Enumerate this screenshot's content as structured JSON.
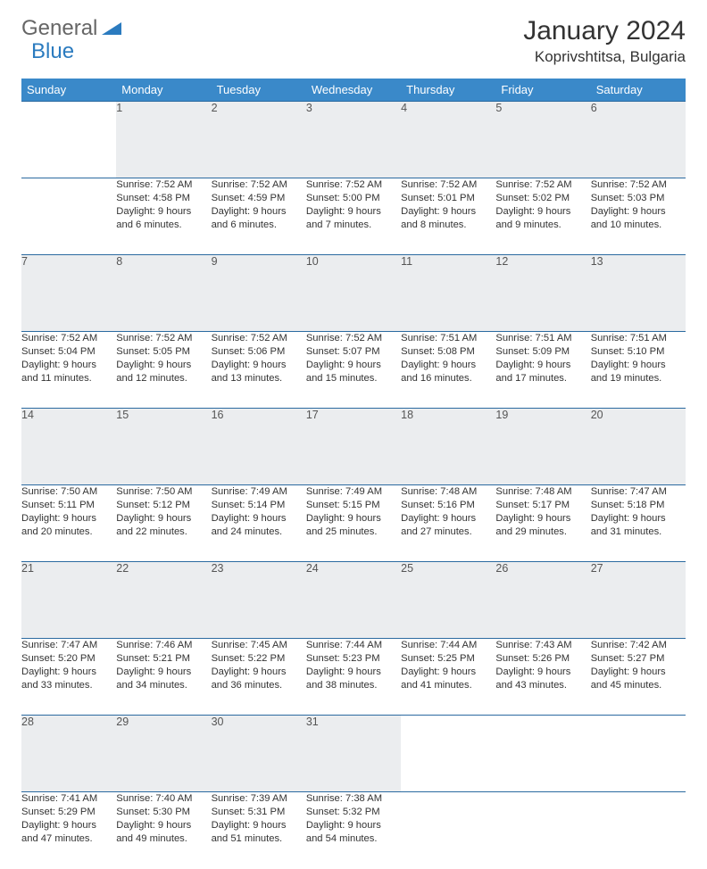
{
  "logo": {
    "general": "General",
    "blue": "Blue"
  },
  "title": "January 2024",
  "location": "Koprivshtitsa, Bulgaria",
  "colors": {
    "header_bg": "#3a89c9",
    "header_text": "#ffffff",
    "daynum_bg": "#ebedef",
    "border": "#2b6aa0",
    "logo_blue": "#2b7bbf"
  },
  "weekdays": [
    "Sunday",
    "Monday",
    "Tuesday",
    "Wednesday",
    "Thursday",
    "Friday",
    "Saturday"
  ],
  "weeks": [
    {
      "nums": [
        "",
        "1",
        "2",
        "3",
        "4",
        "5",
        "6"
      ],
      "cells": [
        null,
        {
          "sr": "Sunrise: 7:52 AM",
          "ss": "Sunset: 4:58 PM",
          "d1": "Daylight: 9 hours",
          "d2": "and 6 minutes."
        },
        {
          "sr": "Sunrise: 7:52 AM",
          "ss": "Sunset: 4:59 PM",
          "d1": "Daylight: 9 hours",
          "d2": "and 6 minutes."
        },
        {
          "sr": "Sunrise: 7:52 AM",
          "ss": "Sunset: 5:00 PM",
          "d1": "Daylight: 9 hours",
          "d2": "and 7 minutes."
        },
        {
          "sr": "Sunrise: 7:52 AM",
          "ss": "Sunset: 5:01 PM",
          "d1": "Daylight: 9 hours",
          "d2": "and 8 minutes."
        },
        {
          "sr": "Sunrise: 7:52 AM",
          "ss": "Sunset: 5:02 PM",
          "d1": "Daylight: 9 hours",
          "d2": "and 9 minutes."
        },
        {
          "sr": "Sunrise: 7:52 AM",
          "ss": "Sunset: 5:03 PM",
          "d1": "Daylight: 9 hours",
          "d2": "and 10 minutes."
        }
      ]
    },
    {
      "nums": [
        "7",
        "8",
        "9",
        "10",
        "11",
        "12",
        "13"
      ],
      "cells": [
        {
          "sr": "Sunrise: 7:52 AM",
          "ss": "Sunset: 5:04 PM",
          "d1": "Daylight: 9 hours",
          "d2": "and 11 minutes."
        },
        {
          "sr": "Sunrise: 7:52 AM",
          "ss": "Sunset: 5:05 PM",
          "d1": "Daylight: 9 hours",
          "d2": "and 12 minutes."
        },
        {
          "sr": "Sunrise: 7:52 AM",
          "ss": "Sunset: 5:06 PM",
          "d1": "Daylight: 9 hours",
          "d2": "and 13 minutes."
        },
        {
          "sr": "Sunrise: 7:52 AM",
          "ss": "Sunset: 5:07 PM",
          "d1": "Daylight: 9 hours",
          "d2": "and 15 minutes."
        },
        {
          "sr": "Sunrise: 7:51 AM",
          "ss": "Sunset: 5:08 PM",
          "d1": "Daylight: 9 hours",
          "d2": "and 16 minutes."
        },
        {
          "sr": "Sunrise: 7:51 AM",
          "ss": "Sunset: 5:09 PM",
          "d1": "Daylight: 9 hours",
          "d2": "and 17 minutes."
        },
        {
          "sr": "Sunrise: 7:51 AM",
          "ss": "Sunset: 5:10 PM",
          "d1": "Daylight: 9 hours",
          "d2": "and 19 minutes."
        }
      ]
    },
    {
      "nums": [
        "14",
        "15",
        "16",
        "17",
        "18",
        "19",
        "20"
      ],
      "cells": [
        {
          "sr": "Sunrise: 7:50 AM",
          "ss": "Sunset: 5:11 PM",
          "d1": "Daylight: 9 hours",
          "d2": "and 20 minutes."
        },
        {
          "sr": "Sunrise: 7:50 AM",
          "ss": "Sunset: 5:12 PM",
          "d1": "Daylight: 9 hours",
          "d2": "and 22 minutes."
        },
        {
          "sr": "Sunrise: 7:49 AM",
          "ss": "Sunset: 5:14 PM",
          "d1": "Daylight: 9 hours",
          "d2": "and 24 minutes."
        },
        {
          "sr": "Sunrise: 7:49 AM",
          "ss": "Sunset: 5:15 PM",
          "d1": "Daylight: 9 hours",
          "d2": "and 25 minutes."
        },
        {
          "sr": "Sunrise: 7:48 AM",
          "ss": "Sunset: 5:16 PM",
          "d1": "Daylight: 9 hours",
          "d2": "and 27 minutes."
        },
        {
          "sr": "Sunrise: 7:48 AM",
          "ss": "Sunset: 5:17 PM",
          "d1": "Daylight: 9 hours",
          "d2": "and 29 minutes."
        },
        {
          "sr": "Sunrise: 7:47 AM",
          "ss": "Sunset: 5:18 PM",
          "d1": "Daylight: 9 hours",
          "d2": "and 31 minutes."
        }
      ]
    },
    {
      "nums": [
        "21",
        "22",
        "23",
        "24",
        "25",
        "26",
        "27"
      ],
      "cells": [
        {
          "sr": "Sunrise: 7:47 AM",
          "ss": "Sunset: 5:20 PM",
          "d1": "Daylight: 9 hours",
          "d2": "and 33 minutes."
        },
        {
          "sr": "Sunrise: 7:46 AM",
          "ss": "Sunset: 5:21 PM",
          "d1": "Daylight: 9 hours",
          "d2": "and 34 minutes."
        },
        {
          "sr": "Sunrise: 7:45 AM",
          "ss": "Sunset: 5:22 PM",
          "d1": "Daylight: 9 hours",
          "d2": "and 36 minutes."
        },
        {
          "sr": "Sunrise: 7:44 AM",
          "ss": "Sunset: 5:23 PM",
          "d1": "Daylight: 9 hours",
          "d2": "and 38 minutes."
        },
        {
          "sr": "Sunrise: 7:44 AM",
          "ss": "Sunset: 5:25 PM",
          "d1": "Daylight: 9 hours",
          "d2": "and 41 minutes."
        },
        {
          "sr": "Sunrise: 7:43 AM",
          "ss": "Sunset: 5:26 PM",
          "d1": "Daylight: 9 hours",
          "d2": "and 43 minutes."
        },
        {
          "sr": "Sunrise: 7:42 AM",
          "ss": "Sunset: 5:27 PM",
          "d1": "Daylight: 9 hours",
          "d2": "and 45 minutes."
        }
      ]
    },
    {
      "nums": [
        "28",
        "29",
        "30",
        "31",
        "",
        "",
        ""
      ],
      "cells": [
        {
          "sr": "Sunrise: 7:41 AM",
          "ss": "Sunset: 5:29 PM",
          "d1": "Daylight: 9 hours",
          "d2": "and 47 minutes."
        },
        {
          "sr": "Sunrise: 7:40 AM",
          "ss": "Sunset: 5:30 PM",
          "d1": "Daylight: 9 hours",
          "d2": "and 49 minutes."
        },
        {
          "sr": "Sunrise: 7:39 AM",
          "ss": "Sunset: 5:31 PM",
          "d1": "Daylight: 9 hours",
          "d2": "and 51 minutes."
        },
        {
          "sr": "Sunrise: 7:38 AM",
          "ss": "Sunset: 5:32 PM",
          "d1": "Daylight: 9 hours",
          "d2": "and 54 minutes."
        },
        null,
        null,
        null
      ]
    }
  ]
}
